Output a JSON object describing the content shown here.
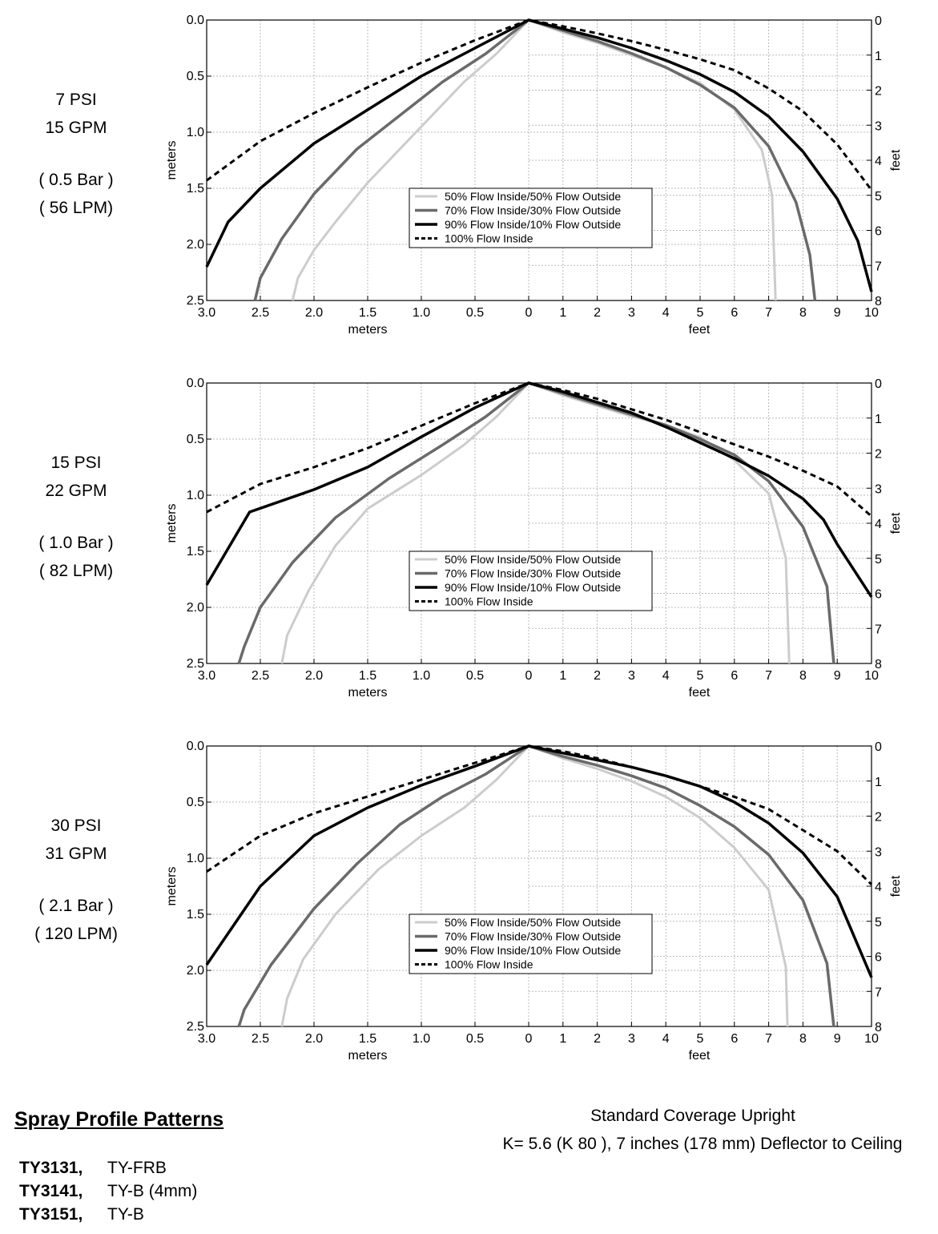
{
  "panels": [
    {
      "psi": "7  PSI",
      "gpm": "15  GPM",
      "bar": "( 0.5  Bar )",
      "lpm": "(   56  LPM)",
      "series": [
        {
          "name": "50% Flow Inside/50% Flow Outside",
          "color": "#cccccc",
          "width": 3,
          "dash": "",
          "left": [
            [
              0,
              0
            ],
            [
              0.3,
              0.3
            ],
            [
              0.6,
              0.55
            ],
            [
              0.9,
              0.85
            ],
            [
              1.2,
              1.15
            ],
            [
              1.5,
              1.45
            ],
            [
              1.8,
              1.8
            ],
            [
              2.0,
              2.05
            ],
            [
              2.15,
              2.3
            ],
            [
              2.2,
              2.5
            ]
          ],
          "right": [
            [
              0,
              0
            ],
            [
              1.0,
              0.35
            ],
            [
              2.0,
              0.65
            ],
            [
              3.0,
              1.0
            ],
            [
              4.0,
              1.35
            ],
            [
              5.0,
              1.8
            ],
            [
              6.0,
              2.55
            ],
            [
              6.8,
              3.7
            ],
            [
              7.1,
              5.0
            ],
            [
              7.2,
              8.0
            ]
          ]
        },
        {
          "name": "70% Flow Inside/30% Flow Outside",
          "color": "#6a6a6a",
          "width": 3.5,
          "dash": "",
          "left": [
            [
              0,
              0
            ],
            [
              0.4,
              0.3
            ],
            [
              0.8,
              0.55
            ],
            [
              1.2,
              0.85
            ],
            [
              1.6,
              1.15
            ],
            [
              2.0,
              1.55
            ],
            [
              2.3,
              1.95
            ],
            [
              2.5,
              2.3
            ],
            [
              2.55,
              2.5
            ]
          ],
          "right": [
            [
              0,
              0
            ],
            [
              1.0,
              0.3
            ],
            [
              2.0,
              0.6
            ],
            [
              3.0,
              0.95
            ],
            [
              4.0,
              1.35
            ],
            [
              5.0,
              1.85
            ],
            [
              6.0,
              2.5
            ],
            [
              7.0,
              3.6
            ],
            [
              7.8,
              5.2
            ],
            [
              8.2,
              6.7
            ],
            [
              8.35,
              8.0
            ]
          ]
        },
        {
          "name": "90% Flow Inside/10% Flow Outside",
          "color": "#000000",
          "width": 3.5,
          "dash": "",
          "left": [
            [
              0,
              0
            ],
            [
              0.5,
              0.25
            ],
            [
              1.0,
              0.5
            ],
            [
              1.5,
              0.8
            ],
            [
              2.0,
              1.1
            ],
            [
              2.5,
              1.5
            ],
            [
              2.8,
              1.8
            ],
            [
              3.0,
              2.2
            ]
          ],
          "right": [
            [
              0,
              0
            ],
            [
              1.0,
              0.25
            ],
            [
              2.0,
              0.5
            ],
            [
              3.0,
              0.8
            ],
            [
              4.0,
              1.15
            ],
            [
              5.0,
              1.55
            ],
            [
              6.0,
              2.05
            ],
            [
              7.0,
              2.75
            ],
            [
              8.0,
              3.75
            ],
            [
              9.0,
              5.1
            ],
            [
              9.6,
              6.3
            ],
            [
              10.0,
              7.75
            ]
          ]
        },
        {
          "name": "100% Flow Inside",
          "color": "#000000",
          "width": 3,
          "dash": "7,5",
          "left": [
            [
              0,
              0
            ],
            [
              0.5,
              0.18
            ],
            [
              1.0,
              0.38
            ],
            [
              1.5,
              0.6
            ],
            [
              2.0,
              0.83
            ],
            [
              2.5,
              1.08
            ],
            [
              3.0,
              1.43
            ]
          ],
          "right": [
            [
              0,
              0
            ],
            [
              1.0,
              0.18
            ],
            [
              2.0,
              0.38
            ],
            [
              3.0,
              0.6
            ],
            [
              4.0,
              0.85
            ],
            [
              5.0,
              1.12
            ],
            [
              6.0,
              1.43
            ],
            [
              7.0,
              1.95
            ],
            [
              8.0,
              2.6
            ],
            [
              9.0,
              3.55
            ],
            [
              10.0,
              4.85
            ]
          ]
        }
      ]
    },
    {
      "psi": "15  PSI",
      "gpm": "22  GPM",
      "bar": "( 1.0  Bar )",
      "lpm": "(   82  LPM)",
      "series": [
        {
          "name": "50% Flow Inside/50% Flow Outside",
          "color": "#cccccc",
          "width": 3,
          "dash": "",
          "left": [
            [
              0,
              0
            ],
            [
              0.3,
              0.3
            ],
            [
              0.6,
              0.55
            ],
            [
              1.0,
              0.82
            ],
            [
              1.5,
              1.12
            ],
            [
              1.8,
              1.45
            ],
            [
              2.05,
              1.85
            ],
            [
              2.25,
              2.25
            ],
            [
              2.3,
              2.5
            ]
          ],
          "right": [
            [
              0,
              0
            ],
            [
              1.0,
              0.35
            ],
            [
              2.0,
              0.65
            ],
            [
              3.0,
              0.95
            ],
            [
              4.0,
              1.2
            ],
            [
              5.0,
              1.55
            ],
            [
              6.0,
              2.2
            ],
            [
              7.0,
              3.15
            ],
            [
              7.5,
              5.0
            ],
            [
              7.6,
              8.0
            ]
          ]
        },
        {
          "name": "70% Flow Inside/30% Flow Outside",
          "color": "#6a6a6a",
          "width": 3.5,
          "dash": "",
          "left": [
            [
              0,
              0
            ],
            [
              0.4,
              0.3
            ],
            [
              0.8,
              0.55
            ],
            [
              1.3,
              0.85
            ],
            [
              1.8,
              1.2
            ],
            [
              2.2,
              1.6
            ],
            [
              2.5,
              2.0
            ],
            [
              2.65,
              2.35
            ],
            [
              2.7,
              2.5
            ]
          ],
          "right": [
            [
              0,
              0
            ],
            [
              1.0,
              0.3
            ],
            [
              2.0,
              0.6
            ],
            [
              3.0,
              0.9
            ],
            [
              4.0,
              1.2
            ],
            [
              5.0,
              1.6
            ],
            [
              6.0,
              2.05
            ],
            [
              7.0,
              2.8
            ],
            [
              8.0,
              4.1
            ],
            [
              8.7,
              5.8
            ],
            [
              8.9,
              8.0
            ]
          ]
        },
        {
          "name": "90% Flow Inside/10% Flow Outside",
          "color": "#000000",
          "width": 3.5,
          "dash": "",
          "left": [
            [
              0,
              0
            ],
            [
              0.5,
              0.22
            ],
            [
              1.0,
              0.48
            ],
            [
              1.5,
              0.75
            ],
            [
              2.0,
              0.95
            ],
            [
              2.3,
              1.05
            ],
            [
              2.6,
              1.15
            ],
            [
              3.0,
              1.8
            ]
          ],
          "right": [
            [
              0,
              0
            ],
            [
              1.0,
              0.25
            ],
            [
              2.0,
              0.55
            ],
            [
              3.0,
              0.85
            ],
            [
              4.0,
              1.25
            ],
            [
              5.0,
              1.7
            ],
            [
              6.0,
              2.15
            ],
            [
              7.0,
              2.65
            ],
            [
              8.0,
              3.3
            ],
            [
              8.6,
              3.9
            ],
            [
              9.0,
              4.6
            ],
            [
              10.0,
              6.1
            ]
          ]
        },
        {
          "name": "100% Flow Inside",
          "color": "#000000",
          "width": 3,
          "dash": "7,5",
          "left": [
            [
              0,
              0
            ],
            [
              0.5,
              0.18
            ],
            [
              1.0,
              0.38
            ],
            [
              1.5,
              0.58
            ],
            [
              2.0,
              0.75
            ],
            [
              2.5,
              0.9
            ],
            [
              3.0,
              1.15
            ]
          ],
          "right": [
            [
              0,
              0
            ],
            [
              1.0,
              0.2
            ],
            [
              2.0,
              0.45
            ],
            [
              3.0,
              0.75
            ],
            [
              4.0,
              1.05
            ],
            [
              5.0,
              1.4
            ],
            [
              6.0,
              1.75
            ],
            [
              7.0,
              2.1
            ],
            [
              8.0,
              2.5
            ],
            [
              9.0,
              2.95
            ],
            [
              10.0,
              3.8
            ]
          ]
        }
      ]
    },
    {
      "psi": "30  PSI",
      "gpm": "31  GPM",
      "bar": "( 2.1  Bar )",
      "lpm": "( 120  LPM)",
      "series": [
        {
          "name": "50% Flow Inside/50% Flow Outside",
          "color": "#cccccc",
          "width": 3,
          "dash": "",
          "left": [
            [
              0,
              0
            ],
            [
              0.3,
              0.3
            ],
            [
              0.6,
              0.55
            ],
            [
              1.0,
              0.8
            ],
            [
              1.4,
              1.1
            ],
            [
              1.8,
              1.5
            ],
            [
              2.1,
              1.9
            ],
            [
              2.25,
              2.25
            ],
            [
              2.3,
              2.5
            ]
          ],
          "right": [
            [
              0,
              0
            ],
            [
              1.0,
              0.35
            ],
            [
              2.0,
              0.65
            ],
            [
              3.0,
              1.0
            ],
            [
              4.0,
              1.45
            ],
            [
              5.0,
              2.05
            ],
            [
              6.0,
              2.9
            ],
            [
              7.0,
              4.1
            ],
            [
              7.5,
              6.3
            ],
            [
              7.55,
              8.0
            ]
          ]
        },
        {
          "name": "70% Flow Inside/30% Flow Outside",
          "color": "#6a6a6a",
          "width": 3.5,
          "dash": "",
          "left": [
            [
              0,
              0
            ],
            [
              0.4,
              0.25
            ],
            [
              0.8,
              0.45
            ],
            [
              1.2,
              0.7
            ],
            [
              1.6,
              1.05
            ],
            [
              2.0,
              1.45
            ],
            [
              2.4,
              1.95
            ],
            [
              2.65,
              2.35
            ],
            [
              2.7,
              2.5
            ]
          ],
          "right": [
            [
              0,
              0
            ],
            [
              1.0,
              0.3
            ],
            [
              2.0,
              0.55
            ],
            [
              3.0,
              0.85
            ],
            [
              4.0,
              1.2
            ],
            [
              5.0,
              1.7
            ],
            [
              6.0,
              2.3
            ],
            [
              7.0,
              3.1
            ],
            [
              8.0,
              4.4
            ],
            [
              8.7,
              6.2
            ],
            [
              8.9,
              8.0
            ]
          ]
        },
        {
          "name": "90% Flow Inside/10% Flow Outside",
          "color": "#000000",
          "width": 3.5,
          "dash": "",
          "left": [
            [
              0,
              0
            ],
            [
              0.5,
              0.18
            ],
            [
              1.0,
              0.35
            ],
            [
              1.5,
              0.55
            ],
            [
              2.0,
              0.8
            ],
            [
              2.5,
              1.25
            ],
            [
              3.0,
              1.95
            ]
          ],
          "right": [
            [
              0,
              0
            ],
            [
              1.0,
              0.2
            ],
            [
              2.0,
              0.4
            ],
            [
              3.0,
              0.6
            ],
            [
              4.0,
              0.85
            ],
            [
              5.0,
              1.15
            ],
            [
              6.0,
              1.6
            ],
            [
              7.0,
              2.2
            ],
            [
              8.0,
              3.05
            ],
            [
              9.0,
              4.3
            ],
            [
              10.0,
              6.6
            ]
          ]
        },
        {
          "name": "100% Flow Inside",
          "color": "#000000",
          "width": 3,
          "dash": "7,5",
          "left": [
            [
              0,
              0
            ],
            [
              0.5,
              0.15
            ],
            [
              1.0,
              0.3
            ],
            [
              1.5,
              0.45
            ],
            [
              2.0,
              0.6
            ],
            [
              2.5,
              0.8
            ],
            [
              3.0,
              1.12
            ]
          ],
          "right": [
            [
              0,
              0
            ],
            [
              1.0,
              0.15
            ],
            [
              2.0,
              0.35
            ],
            [
              3.0,
              0.6
            ],
            [
              4.0,
              0.85
            ],
            [
              5.0,
              1.15
            ],
            [
              6.0,
              1.45
            ],
            [
              7.0,
              1.8
            ],
            [
              8.0,
              2.4
            ],
            [
              9.0,
              3.0
            ],
            [
              10.0,
              3.95
            ]
          ]
        }
      ]
    }
  ],
  "chart_data": {
    "type": "line",
    "x_left_label": "meters",
    "x_left_ticks": [
      "3.0",
      "2.5",
      "2.0",
      "1.5",
      "1.0",
      "0.5",
      "0"
    ],
    "x_right_label": "feet",
    "x_right_ticks": [
      "1",
      "2",
      "3",
      "4",
      "5",
      "6",
      "7",
      "8",
      "9",
      "10"
    ],
    "y_left_label": "meters",
    "y_left_ticks": [
      "0.0",
      "0.5",
      "1.0",
      "1.5",
      "2.0",
      "2.5"
    ],
    "y_right_label": "feet",
    "y_right_ticks": [
      "0",
      "1",
      "2",
      "3",
      "4",
      "5",
      "6",
      "7",
      "8"
    ],
    "xlim_left_m": [
      0,
      3.0
    ],
    "xlim_right_ft": [
      0,
      10
    ],
    "ylim_left_m": [
      0,
      2.5
    ],
    "ylim_right_ft": [
      0,
      8
    ],
    "grid": true,
    "legend_position": "center",
    "legend": [
      "50% Flow Inside/50% Flow Outside",
      "70% Flow Inside/30% Flow Outside",
      "90% Flow Inside/10% Flow Outside",
      "100% Flow Inside"
    ]
  },
  "footer": {
    "title": "Spray Profile Patterns",
    "models": [
      {
        "code": "TY3131",
        "sep": ",",
        "name": "TY-FRB"
      },
      {
        "code": "TY3141",
        "sep": ",",
        "name": "TY-B (4mm)"
      },
      {
        "code": "TY3151",
        "sep": ",",
        "name": "TY-B"
      }
    ],
    "desc_line1": "Standard Coverage Upright",
    "desc_line2": "K= 5.6 (K  80  ),  7 inches (178 mm) Deflector to Ceiling"
  }
}
